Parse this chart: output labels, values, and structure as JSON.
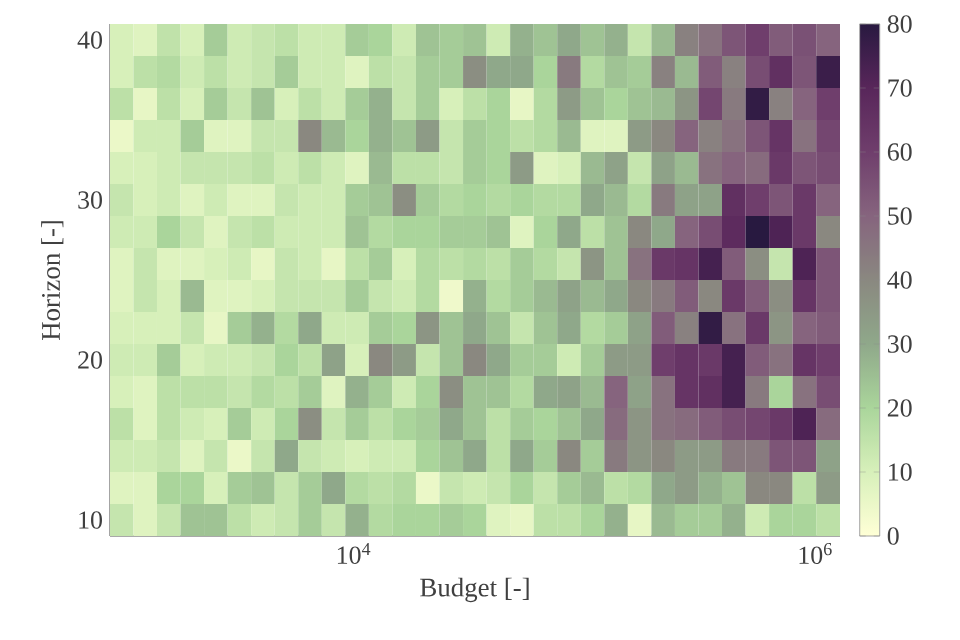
{
  "chart_data": {
    "type": "heatmap",
    "xlabel": "Budget [-]",
    "ylabel": "Horizon [-]",
    "log": "x",
    "x": [
      989,
      1250,
      1581,
      2000,
      2529,
      3199,
      4046,
      5117,
      6471,
      8185,
      10350,
      13090,
      16560,
      20940,
      26490,
      33500,
      42370,
      53580,
      67760,
      85700,
      108400,
      137100,
      173400,
      219300,
      277300,
      350800,
      443600,
      561000,
      709600,
      897500,
      1135000
    ],
    "y": [
      40,
      38,
      36,
      34,
      32,
      30,
      28,
      26,
      24,
      22,
      20,
      18,
      16,
      14,
      12,
      10
    ],
    "xlim": [
      880,
      1280000
    ],
    "ylim": [
      9,
      41
    ],
    "xticks": [
      {
        "value": 10000,
        "label": "10$^{4}$"
      },
      {
        "value": 1000000,
        "label": "10$^{6}$"
      }
    ],
    "yticks": [
      10,
      20,
      30,
      40
    ],
    "clim": [
      0,
      80
    ],
    "cticks": [
      0,
      10,
      20,
      30,
      40,
      50,
      60,
      70,
      80
    ],
    "cells": [
      [
        10,
        8,
        15,
        10,
        22,
        12,
        14,
        16,
        12,
        12,
        22,
        20,
        12,
        24,
        22,
        24,
        12,
        28,
        24,
        30,
        24,
        28,
        14,
        26,
        42,
        46,
        54,
        60,
        52,
        55,
        50
      ],
      [
        10,
        16,
        18,
        12,
        16,
        12,
        14,
        22,
        12,
        12,
        8,
        16,
        14,
        22,
        22,
        38,
        30,
        30,
        20,
        44,
        18,
        24,
        22,
        42,
        26,
        52,
        42,
        56,
        66,
        54,
        76
      ],
      [
        16,
        6,
        16,
        10,
        22,
        14,
        24,
        10,
        16,
        12,
        22,
        28,
        14,
        22,
        10,
        16,
        20,
        6,
        18,
        34,
        24,
        20,
        24,
        26,
        36,
        58,
        44,
        78,
        42,
        50,
        60
      ],
      [
        5,
        12,
        12,
        22,
        8,
        8,
        14,
        14,
        40,
        26,
        20,
        28,
        24,
        34,
        14,
        22,
        20,
        16,
        18,
        26,
        8,
        8,
        34,
        40,
        50,
        42,
        46,
        54,
        64,
        46,
        58
      ],
      [
        10,
        10,
        12,
        14,
        14,
        14,
        16,
        12,
        16,
        12,
        8,
        26,
        16,
        16,
        14,
        22,
        20,
        34,
        8,
        10,
        26,
        32,
        14,
        32,
        26,
        46,
        50,
        48,
        62,
        54,
        56
      ],
      [
        14,
        10,
        12,
        8,
        12,
        8,
        8,
        14,
        12,
        12,
        22,
        24,
        38,
        22,
        18,
        20,
        18,
        20,
        18,
        18,
        30,
        26,
        18,
        44,
        32,
        32,
        66,
        60,
        54,
        62,
        50
      ],
      [
        12,
        12,
        20,
        14,
        8,
        14,
        16,
        12,
        12,
        12,
        24,
        18,
        20,
        20,
        22,
        22,
        24,
        8,
        20,
        30,
        16,
        24,
        40,
        30,
        50,
        56,
        68,
        80,
        72,
        62,
        40
      ],
      [
        8,
        14,
        8,
        8,
        10,
        12,
        6,
        14,
        12,
        6,
        16,
        22,
        10,
        18,
        16,
        18,
        16,
        22,
        18,
        14,
        36,
        24,
        46,
        62,
        64,
        74,
        52,
        38,
        14,
        72,
        54
      ],
      [
        8,
        14,
        10,
        26,
        8,
        8,
        10,
        14,
        14,
        14,
        22,
        14,
        12,
        18,
        4,
        28,
        18,
        22,
        26,
        32,
        26,
        30,
        40,
        44,
        52,
        40,
        62,
        52,
        38,
        64,
        54
      ],
      [
        10,
        10,
        10,
        14,
        6,
        22,
        28,
        18,
        30,
        12,
        12,
        22,
        20,
        36,
        24,
        30,
        24,
        14,
        24,
        30,
        18,
        22,
        32,
        52,
        42,
        78,
        46,
        62,
        36,
        50,
        52
      ],
      [
        12,
        12,
        22,
        10,
        12,
        12,
        14,
        20,
        16,
        32,
        10,
        40,
        34,
        14,
        24,
        40,
        30,
        22,
        22,
        12,
        22,
        34,
        34,
        60,
        64,
        62,
        74,
        52,
        46,
        64,
        60
      ],
      [
        10,
        8,
        16,
        16,
        16,
        14,
        18,
        16,
        22,
        8,
        28,
        22,
        12,
        20,
        38,
        24,
        24,
        18,
        30,
        32,
        26,
        50,
        32,
        46,
        64,
        66,
        74,
        44,
        20,
        46,
        56
      ],
      [
        16,
        8,
        16,
        12,
        10,
        22,
        12,
        20,
        38,
        14,
        22,
        16,
        20,
        22,
        30,
        24,
        16,
        22,
        20,
        24,
        30,
        48,
        36,
        46,
        48,
        52,
        56,
        58,
        62,
        72,
        48
      ],
      [
        12,
        12,
        14,
        8,
        14,
        5,
        14,
        30,
        14,
        12,
        10,
        12,
        12,
        20,
        24,
        30,
        16,
        30,
        22,
        40,
        22,
        44,
        36,
        40,
        34,
        34,
        44,
        44,
        54,
        54,
        32
      ],
      [
        8,
        8,
        20,
        20,
        10,
        22,
        24,
        14,
        22,
        30,
        18,
        16,
        18,
        5,
        14,
        12,
        14,
        20,
        14,
        22,
        26,
        16,
        18,
        30,
        34,
        28,
        24,
        40,
        40,
        16,
        34
      ],
      [
        14,
        8,
        14,
        24,
        24,
        16,
        12,
        14,
        22,
        14,
        28,
        18,
        20,
        20,
        22,
        20,
        8,
        6,
        16,
        16,
        20,
        28,
        6,
        26,
        22,
        22,
        28,
        12,
        20,
        20,
        16
      ]
    ]
  }
}
